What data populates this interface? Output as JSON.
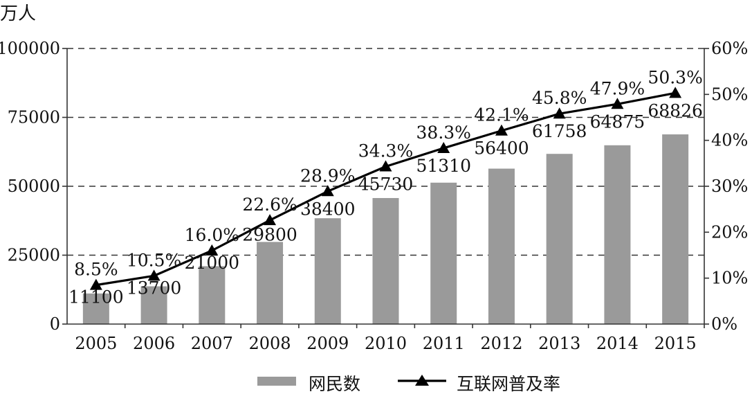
{
  "chart_data": {
    "type": "bar",
    "categories": [
      "2005",
      "2006",
      "2007",
      "2008",
      "2009",
      "2010",
      "2011",
      "2012",
      "2013",
      "2014",
      "2015"
    ],
    "series": [
      {
        "name": "网民数",
        "type": "bar",
        "axis": "left",
        "values": [
          11100,
          13700,
          21000,
          29800,
          38400,
          45730,
          51310,
          56400,
          61758,
          64875,
          68826
        ],
        "labels": [
          "11100",
          "13700",
          "21000",
          "29800",
          "38400",
          "45730",
          "51310",
          "56400",
          "61758",
          "64875",
          "68826"
        ],
        "color": "#9a9a9a"
      },
      {
        "name": "互联网普及率",
        "type": "line",
        "axis": "right",
        "values": [
          8.5,
          10.5,
          16.0,
          22.6,
          28.9,
          34.3,
          38.3,
          42.1,
          45.8,
          47.9,
          50.3
        ],
        "labels": [
          "8.5%",
          "10.5%",
          "16.0%",
          "22.6%",
          "28.9%",
          "34.3%",
          "38.3%",
          "42.1%",
          "45.8%",
          "47.9%",
          "50.3%"
        ],
        "color": "#000000",
        "marker": "triangle"
      }
    ],
    "y_left": {
      "unit": "万人",
      "range": [
        0,
        100000
      ],
      "ticks": [
        0,
        25000,
        50000,
        75000,
        100000
      ],
      "tick_labels": [
        "0",
        "25000",
        "50000",
        "75000",
        "100000"
      ]
    },
    "y_right": {
      "range": [
        0,
        60
      ],
      "ticks": [
        0,
        10,
        20,
        30,
        40,
        50,
        60
      ],
      "tick_labels": [
        "0%",
        "10%",
        "20%",
        "30%",
        "40%",
        "50%",
        "60%"
      ]
    },
    "grid": "horizontal-dashed",
    "legend": "bottom-center"
  }
}
